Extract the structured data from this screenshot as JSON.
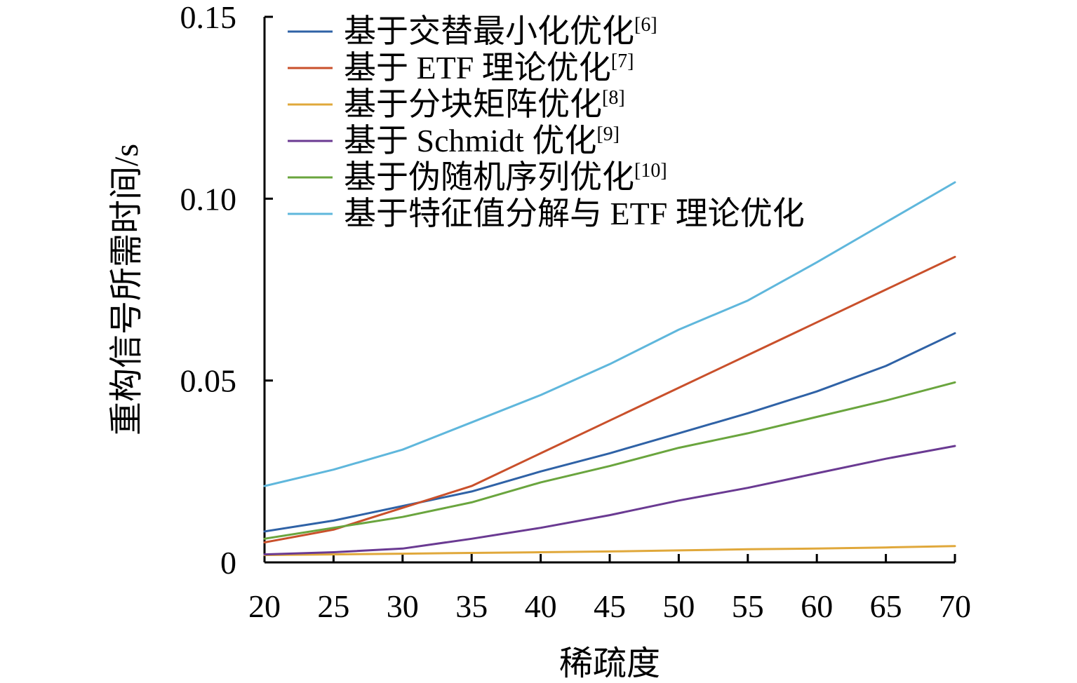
{
  "chart_data": {
    "type": "line",
    "title": "",
    "xlabel": "稀疏度",
    "ylabel": "重构信号所需时间/s",
    "x": [
      20,
      25,
      30,
      35,
      40,
      45,
      50,
      55,
      60,
      65,
      70
    ],
    "xlim": [
      20,
      70
    ],
    "ylim": [
      0,
      0.15
    ],
    "xticks": [
      20,
      25,
      30,
      35,
      40,
      45,
      50,
      55,
      60,
      65,
      70
    ],
    "yticks": [
      {
        "value": 0,
        "label": "0"
      },
      {
        "value": 0.05,
        "label": "0.05"
      },
      {
        "value": 0.1,
        "label": "0.10"
      },
      {
        "value": 0.15,
        "label": "0.15"
      }
    ],
    "grid": false,
    "legend_position": "top-left",
    "series": [
      {
        "name": "基于交替最小化优化",
        "ref": "[6]",
        "color": "#2f62a6",
        "values": [
          0.0085,
          0.0115,
          0.0155,
          0.0195,
          0.025,
          0.03,
          0.0355,
          0.041,
          0.047,
          0.054,
          0.063
        ]
      },
      {
        "name": "基于 ETF 理论优化",
        "ref": "[7]",
        "color": "#c9502b",
        "values": [
          0.0055,
          0.009,
          0.015,
          0.021,
          0.03,
          0.039,
          0.048,
          0.057,
          0.066,
          0.075,
          0.084
        ]
      },
      {
        "name": "基于分块矩阵优化",
        "ref": "[8]",
        "color": "#e0a83b",
        "values": [
          0.002,
          0.0022,
          0.0024,
          0.0026,
          0.0028,
          0.003,
          0.0033,
          0.0036,
          0.0038,
          0.0041,
          0.0045
        ]
      },
      {
        "name": "基于 Schmidt 优化",
        "ref": "[9]",
        "color": "#6a3a92",
        "values": [
          0.0022,
          0.0028,
          0.0038,
          0.0065,
          0.0095,
          0.013,
          0.017,
          0.0205,
          0.0245,
          0.0285,
          0.032
        ]
      },
      {
        "name": "基于伪随机序列优化",
        "ref": "[10]",
        "color": "#6aa53e",
        "values": [
          0.0065,
          0.0095,
          0.0125,
          0.0165,
          0.022,
          0.0265,
          0.0315,
          0.0355,
          0.04,
          0.0445,
          0.0495
        ]
      },
      {
        "name": "基于特征值分解与 ETF 理论优化",
        "ref": "",
        "color": "#5fb7dc",
        "values": [
          0.021,
          0.0255,
          0.031,
          0.0385,
          0.046,
          0.0545,
          0.064,
          0.072,
          0.0825,
          0.0935,
          0.1045
        ]
      }
    ]
  }
}
